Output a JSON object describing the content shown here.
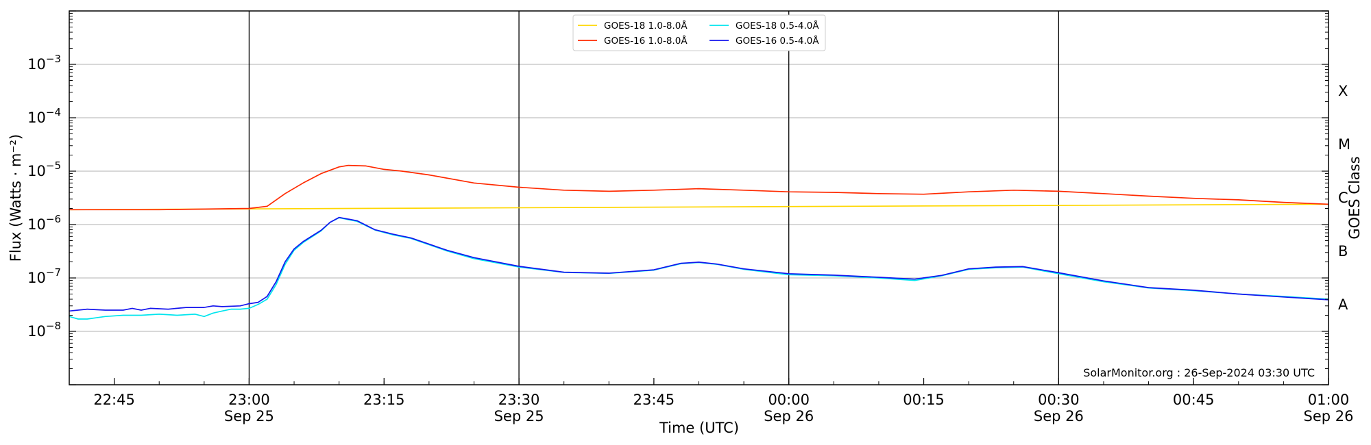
{
  "chart_data": {
    "type": "line",
    "xlabel": "Time (UTC)",
    "ylabel": "Flux (Watts · m⁻²)",
    "y2label": "GOES Class",
    "yscale": "log",
    "ylim": [
      1e-09,
      0.01
    ],
    "xlim": [
      "2024-09-25 22:40",
      "2024-09-26 01:00"
    ],
    "grid": "horizontal at decades",
    "legend_position": "top-center",
    "credit": "SolarMonitor.org : 26-Sep-2024 03:30 UTC",
    "y_ticks": [
      {
        "value": 1e-08,
        "label_base": "10",
        "label_exp": "−8"
      },
      {
        "value": 1e-07,
        "label_base": "10",
        "label_exp": "−7"
      },
      {
        "value": 1e-06,
        "label_base": "10",
        "label_exp": "−6"
      },
      {
        "value": 1e-05,
        "label_base": "10",
        "label_exp": "−5"
      },
      {
        "value": 0.0001,
        "label_base": "10",
        "label_exp": "−4"
      },
      {
        "value": 0.001,
        "label_base": "10",
        "label_exp": "−3"
      }
    ],
    "x_ticks": [
      {
        "time": "2024-09-25 22:45",
        "line1": "22:45",
        "line2": ""
      },
      {
        "time": "2024-09-25 23:00",
        "line1": "23:00",
        "line2": "Sep 25"
      },
      {
        "time": "2024-09-25 23:15",
        "line1": "23:15",
        "line2": ""
      },
      {
        "time": "2024-09-25 23:30",
        "line1": "23:30",
        "line2": "Sep 25"
      },
      {
        "time": "2024-09-25 23:45",
        "line1": "23:45",
        "line2": ""
      },
      {
        "time": "2024-09-26 00:00",
        "line1": "00:00",
        "line2": "Sep 26"
      },
      {
        "time": "2024-09-26 00:15",
        "line1": "00:15",
        "line2": ""
      },
      {
        "time": "2024-09-26 00:30",
        "line1": "00:30",
        "line2": "Sep 26"
      },
      {
        "time": "2024-09-26 00:45",
        "line1": "00:45",
        "line2": ""
      },
      {
        "time": "2024-09-26 01:00",
        "line1": "01:00",
        "line2": "Sep 26"
      }
    ],
    "vertical_lines": [
      "2024-09-25 23:00",
      "2024-09-25 23:30",
      "2024-09-26 00:00",
      "2024-09-26 00:30"
    ],
    "goes_classes": [
      {
        "label": "A",
        "value": 1e-08
      },
      {
        "label": "B",
        "value": 1e-07
      },
      {
        "label": "C",
        "value": 1e-06
      },
      {
        "label": "M",
        "value": 1e-05
      },
      {
        "label": "X",
        "value": 0.0001
      }
    ],
    "series": [
      {
        "name": "GOES-18 1.0-8.0Å",
        "color": "#ffd700",
        "x": [
          "2024-09-25 22:40",
          "2024-09-26 01:00"
        ],
        "y": [
          1.9e-06,
          2.4e-06
        ]
      },
      {
        "name": "GOES-18 0.5-4.0Å",
        "color": "#00e5ee",
        "x": [
          "2024-09-25 22:40",
          "2024-09-25 22:41",
          "2024-09-25 22:42",
          "2024-09-25 22:44",
          "2024-09-25 22:46",
          "2024-09-25 22:48",
          "2024-09-25 22:50",
          "2024-09-25 22:52",
          "2024-09-25 22:54",
          "2024-09-25 22:55",
          "2024-09-25 22:56",
          "2024-09-25 22:57",
          "2024-09-25 22:58",
          "2024-09-25 22:59",
          "2024-09-25 23:00",
          "2024-09-25 23:01",
          "2024-09-25 23:02",
          "2024-09-25 23:03",
          "2024-09-25 23:04",
          "2024-09-25 23:05",
          "2024-09-25 23:06",
          "2024-09-25 23:08",
          "2024-09-25 23:09",
          "2024-09-25 23:10",
          "2024-09-25 23:12",
          "2024-09-25 23:14",
          "2024-09-25 23:16",
          "2024-09-25 23:18",
          "2024-09-25 23:20",
          "2024-09-25 23:22",
          "2024-09-25 23:25",
          "2024-09-25 23:30",
          "2024-09-25 23:35",
          "2024-09-25 23:40",
          "2024-09-25 23:45",
          "2024-09-25 23:48",
          "2024-09-25 23:50",
          "2024-09-25 23:52",
          "2024-09-25 23:55",
          "2024-09-26 00:00",
          "2024-09-26 00:05",
          "2024-09-26 00:10",
          "2024-09-26 00:14",
          "2024-09-26 00:17",
          "2024-09-26 00:20",
          "2024-09-26 00:23",
          "2024-09-26 00:26",
          "2024-09-26 00:30",
          "2024-09-26 00:35",
          "2024-09-26 00:40",
          "2024-09-26 00:45",
          "2024-09-26 00:50",
          "2024-09-26 00:55",
          "2024-09-26 01:00"
        ],
        "y": [
          1.9e-08,
          1.7e-08,
          1.7e-08,
          1.9e-08,
          2e-08,
          2e-08,
          2.1e-08,
          2e-08,
          2.1e-08,
          1.9e-08,
          2.2e-08,
          2.4e-08,
          2.6e-08,
          2.6e-08,
          2.7e-08,
          3.2e-08,
          4e-08,
          7.5e-08,
          1.8e-07,
          3.3e-07,
          4.6e-07,
          7.6e-07,
          1.1e-06,
          1.34e-06,
          1.15e-06,
          7.9e-07,
          6.4e-07,
          5.5e-07,
          4.2e-07,
          3.2e-07,
          2.3e-07,
          1.6e-07,
          1.27e-07,
          1.22e-07,
          1.4e-07,
          1.85e-07,
          1.95e-07,
          1.8e-07,
          1.45e-07,
          1.15e-07,
          1.1e-07,
          1e-07,
          9e-08,
          1.1e-07,
          1.45e-07,
          1.55e-07,
          1.6e-07,
          1.2e-07,
          8.5e-08,
          6.5e-08,
          5.8e-08,
          5e-08,
          4.5e-08,
          4e-08
        ]
      },
      {
        "name": "GOES-16 1.0-8.0Å",
        "color": "#ff2a00",
        "x": [
          "2024-09-25 22:40",
          "2024-09-25 22:50",
          "2024-09-25 23:00",
          "2024-09-25 23:02",
          "2024-09-25 23:04",
          "2024-09-25 23:06",
          "2024-09-25 23:08",
          "2024-09-25 23:10",
          "2024-09-25 23:11",
          "2024-09-25 23:13",
          "2024-09-25 23:15",
          "2024-09-25 23:17",
          "2024-09-25 23:20",
          "2024-09-25 23:25",
          "2024-09-25 23:30",
          "2024-09-25 23:35",
          "2024-09-25 23:40",
          "2024-09-25 23:45",
          "2024-09-25 23:50",
          "2024-09-25 23:55",
          "2024-09-26 00:00",
          "2024-09-26 00:05",
          "2024-09-26 00:10",
          "2024-09-26 00:15",
          "2024-09-26 00:20",
          "2024-09-26 00:25",
          "2024-09-26 00:30",
          "2024-09-26 00:35",
          "2024-09-26 00:40",
          "2024-09-26 00:45",
          "2024-09-26 00:50",
          "2024-09-26 00:55",
          "2024-09-26 01:00"
        ],
        "y": [
          1.9e-06,
          1.9e-06,
          2e-06,
          2.2e-06,
          3.8e-06,
          6e-06,
          9e-06,
          1.2e-05,
          1.28e-05,
          1.25e-05,
          1.08e-05,
          1e-05,
          8.5e-06,
          6e-06,
          5e-06,
          4.4e-06,
          4.2e-06,
          4.4e-06,
          4.7e-06,
          4.4e-06,
          4.1e-06,
          4e-06,
          3.8e-06,
          3.7e-06,
          4.1e-06,
          4.4e-06,
          4.2e-06,
          3.8e-06,
          3.4e-06,
          3.1e-06,
          2.9e-06,
          2.6e-06,
          2.4e-06
        ]
      },
      {
        "name": "GOES-16 0.5-4.0Å",
        "color": "#1515ee",
        "x": [
          "2024-09-25 22:40",
          "2024-09-25 22:42",
          "2024-09-25 22:44",
          "2024-09-25 22:46",
          "2024-09-25 22:47",
          "2024-09-25 22:48",
          "2024-09-25 22:49",
          "2024-09-25 22:51",
          "2024-09-25 22:53",
          "2024-09-25 22:55",
          "2024-09-25 22:56",
          "2024-09-25 22:57",
          "2024-09-25 22:59",
          "2024-09-25 23:00",
          "2024-09-25 23:01",
          "2024-09-25 23:02",
          "2024-09-25 23:03",
          "2024-09-25 23:04",
          "2024-09-25 23:05",
          "2024-09-25 23:06",
          "2024-09-25 23:08",
          "2024-09-25 23:09",
          "2024-09-25 23:10",
          "2024-09-25 23:12",
          "2024-09-25 23:14",
          "2024-09-25 23:16",
          "2024-09-25 23:18",
          "2024-09-25 23:20",
          "2024-09-25 23:22",
          "2024-09-25 23:25",
          "2024-09-25 23:30",
          "2024-09-25 23:35",
          "2024-09-25 23:40",
          "2024-09-25 23:45",
          "2024-09-25 23:48",
          "2024-09-25 23:50",
          "2024-09-25 23:52",
          "2024-09-25 23:55",
          "2024-09-26 00:00",
          "2024-09-26 00:05",
          "2024-09-26 00:10",
          "2024-09-26 00:14",
          "2024-09-26 00:17",
          "2024-09-26 00:20",
          "2024-09-26 00:23",
          "2024-09-26 00:26",
          "2024-09-26 00:30",
          "2024-09-26 00:35",
          "2024-09-26 00:40",
          "2024-09-26 00:45",
          "2024-09-26 00:50",
          "2024-09-26 00:55",
          "2024-09-26 01:00"
        ],
        "y": [
          2.4e-08,
          2.6e-08,
          2.5e-08,
          2.5e-08,
          2.7e-08,
          2.5e-08,
          2.7e-08,
          2.6e-08,
          2.8e-08,
          2.8e-08,
          3e-08,
          2.9e-08,
          3e-08,
          3.3e-08,
          3.5e-08,
          4.5e-08,
          8.5e-08,
          2e-07,
          3.5e-07,
          4.8e-07,
          7.8e-07,
          1.1e-06,
          1.36e-06,
          1.18e-06,
          8e-07,
          6.6e-07,
          5.6e-07,
          4.3e-07,
          3.3e-07,
          2.4e-07,
          1.65e-07,
          1.28e-07,
          1.23e-07,
          1.42e-07,
          1.88e-07,
          1.98e-07,
          1.82e-07,
          1.48e-07,
          1.2e-07,
          1.13e-07,
          1.03e-07,
          9.5e-08,
          1.12e-07,
          1.48e-07,
          1.6e-07,
          1.63e-07,
          1.25e-07,
          8.8e-08,
          6.6e-08,
          5.9e-08,
          5e-08,
          4.4e-08,
          3.9e-08
        ]
      }
    ]
  }
}
